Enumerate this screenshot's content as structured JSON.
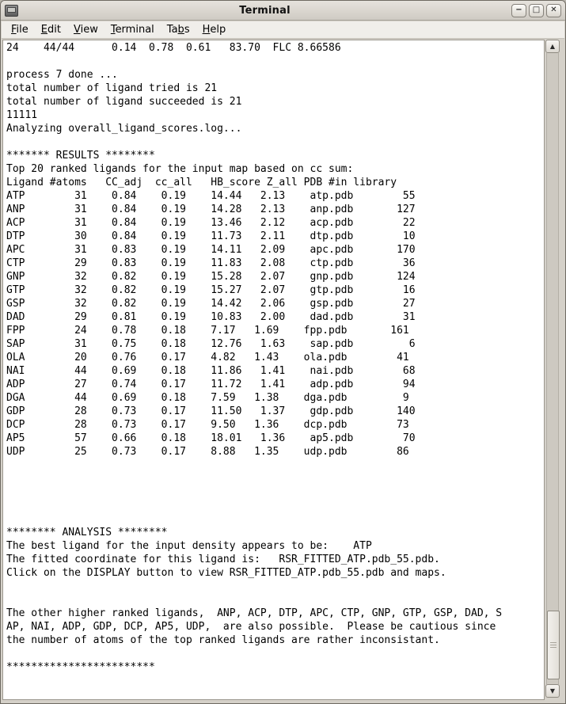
{
  "window": {
    "title": "Terminal",
    "controls": [
      {
        "name": "minimize",
        "glyph": "−"
      },
      {
        "name": "maximize",
        "glyph": "□"
      },
      {
        "name": "close",
        "glyph": "✕"
      }
    ]
  },
  "menubar": {
    "items": [
      {
        "label": "File",
        "accel": "F"
      },
      {
        "label": "Edit",
        "accel": "E"
      },
      {
        "label": "View",
        "accel": "V"
      },
      {
        "label": "Terminal",
        "accel": "T"
      },
      {
        "label": "Tabs",
        "accel": "b"
      },
      {
        "label": "Help",
        "accel": "H"
      }
    ]
  },
  "terminal": {
    "pre_lines": [
      "24    44/44      0.14  0.78  0.61   83.70  FLC 8.66586",
      "",
      "process 7 done ...",
      "total number of ligand tried is 21",
      "total number of ligand succeeded is 21",
      "11111",
      "Analyzing overall_ligand_scores.log...",
      "",
      "******* RESULTS ********",
      "Top 20 ranked ligands for the input map based on cc sum:"
    ],
    "results_table": {
      "columns": [
        "Ligand",
        "#atoms",
        "CC_adj",
        "cc_all",
        "HB_score",
        "Z_all",
        "PDB",
        "#in library"
      ],
      "rows": [
        [
          "ATP",
          "31",
          "0.84",
          "0.19",
          "14.44",
          "2.13",
          "atp.pdb",
          "55"
        ],
        [
          "ANP",
          "31",
          "0.84",
          "0.19",
          "14.28",
          "2.13",
          "anp.pdb",
          "127"
        ],
        [
          "ACP",
          "31",
          "0.84",
          "0.19",
          "13.46",
          "2.12",
          "acp.pdb",
          "22"
        ],
        [
          "DTP",
          "30",
          "0.84",
          "0.19",
          "11.73",
          "2.11",
          "dtp.pdb",
          "10"
        ],
        [
          "APC",
          "31",
          "0.83",
          "0.19",
          "14.11",
          "2.09",
          "apc.pdb",
          "170"
        ],
        [
          "CTP",
          "29",
          "0.83",
          "0.19",
          "11.83",
          "2.08",
          "ctp.pdb",
          "36"
        ],
        [
          "GNP",
          "32",
          "0.82",
          "0.19",
          "15.28",
          "2.07",
          "gnp.pdb",
          "124"
        ],
        [
          "GTP",
          "32",
          "0.82",
          "0.19",
          "15.27",
          "2.07",
          "gtp.pdb",
          "16"
        ],
        [
          "GSP",
          "32",
          "0.82",
          "0.19",
          "14.42",
          "2.06",
          "gsp.pdb",
          "27"
        ],
        [
          "DAD",
          "29",
          "0.81",
          "0.19",
          "10.83",
          "2.00",
          "dad.pdb",
          "31"
        ],
        [
          "FPP",
          "24",
          "0.78",
          "0.18",
          "7.17",
          "1.69",
          "fpp.pdb",
          "161"
        ],
        [
          "SAP",
          "31",
          "0.75",
          "0.18",
          "12.76",
          "1.63",
          "sap.pdb",
          "6"
        ],
        [
          "OLA",
          "20",
          "0.76",
          "0.17",
          "4.82",
          "1.43",
          "ola.pdb",
          "41"
        ],
        [
          "NAI",
          "44",
          "0.69",
          "0.18",
          "11.86",
          "1.41",
          "nai.pdb",
          "68"
        ],
        [
          "ADP",
          "27",
          "0.74",
          "0.17",
          "11.72",
          "1.41",
          "adp.pdb",
          "94"
        ],
        [
          "DGA",
          "44",
          "0.69",
          "0.18",
          "7.59",
          "1.38",
          "dga.pdb",
          "9"
        ],
        [
          "GDP",
          "28",
          "0.73",
          "0.17",
          "11.50",
          "1.37",
          "gdp.pdb",
          "140"
        ],
        [
          "DCP",
          "28",
          "0.73",
          "0.17",
          "9.50",
          "1.36",
          "dcp.pdb",
          "73"
        ],
        [
          "AP5",
          "57",
          "0.66",
          "0.18",
          "18.01",
          "1.36",
          "ap5.pdb",
          "70"
        ],
        [
          "UDP",
          "25",
          "0.73",
          "0.17",
          "8.88",
          "1.35",
          "udp.pdb",
          "86"
        ]
      ]
    },
    "post_lines": [
      "",
      "",
      "",
      "",
      "",
      "******** ANALYSIS ********",
      "The best ligand for the input density appears to be:    ATP",
      "The fitted coordinate for this ligand is:   RSR_FITTED_ATP.pdb_55.pdb.",
      "Click on the DISPLAY button to view RSR_FITTED_ATP.pdb_55.pdb and maps.",
      "",
      "",
      "The other higher ranked ligands,  ANP, ACP, DTP, APC, CTP, GNP, GTP, GSP, DAD, S",
      "AP, NAI, ADP, GDP, DCP, AP5, UDP,  are also possible.  Please be cautious since",
      "the number of atoms of the top ranked ligands are rather inconsistant.",
      "",
      "************************"
    ]
  },
  "scrollbar": {
    "up_glyph": "▲",
    "down_glyph": "▼"
  },
  "colors": {
    "titlebar_bg": "#d8d4cc",
    "menubar_bg": "#f0eeea",
    "terminal_bg": "#ffffff",
    "terminal_text": "#000000",
    "frame": "#d5d1c9"
  }
}
